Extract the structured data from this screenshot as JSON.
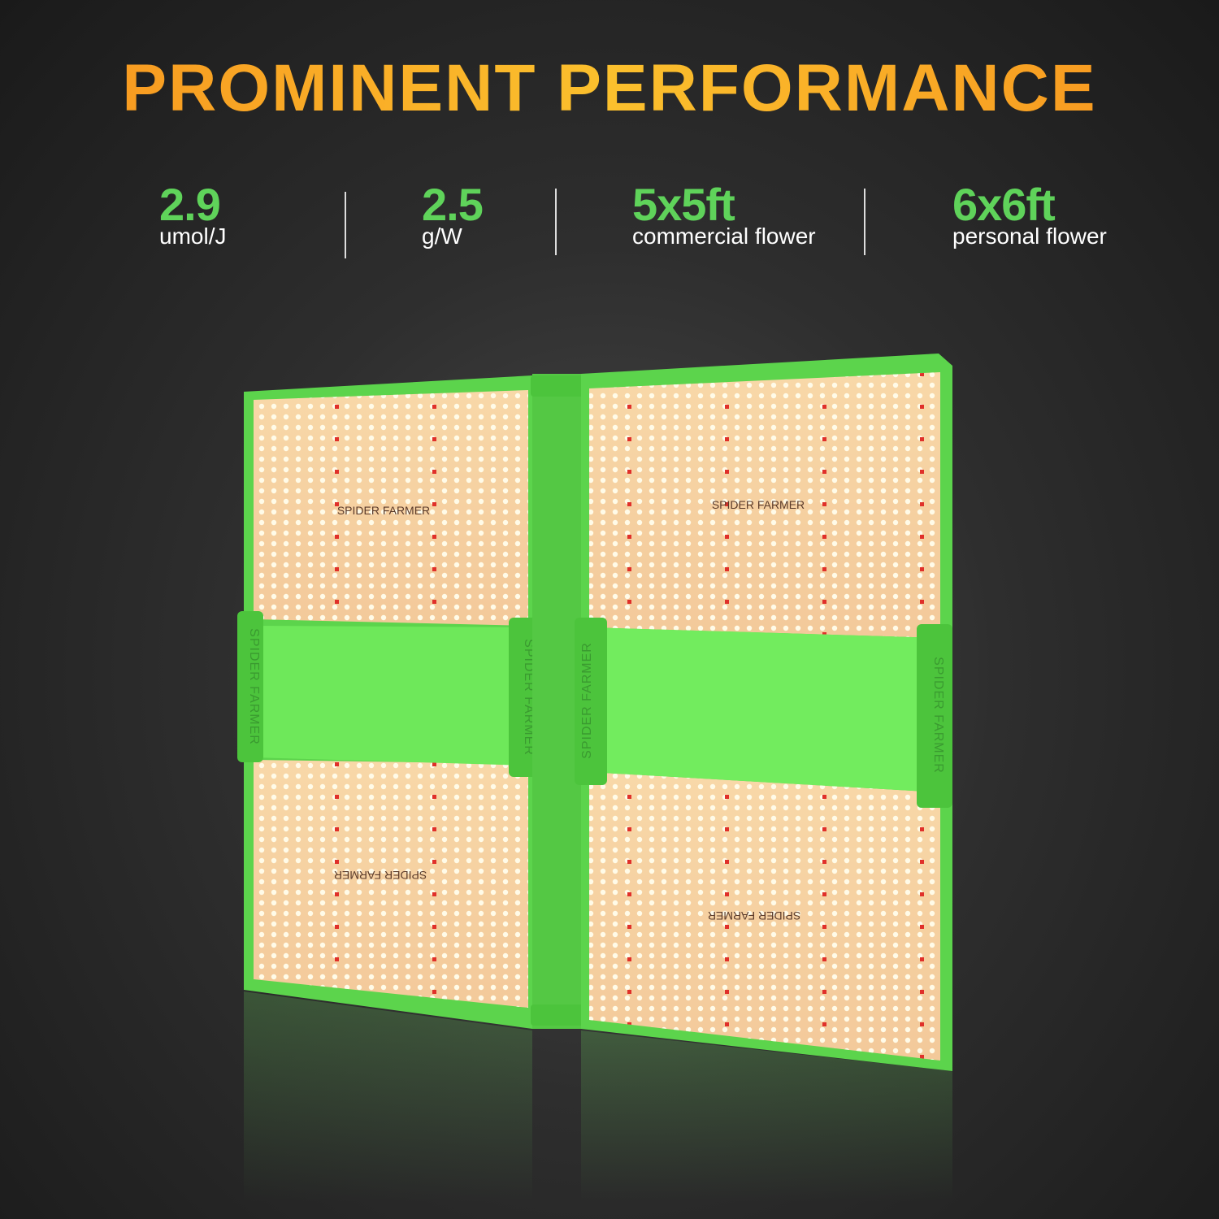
{
  "header": {
    "title": "PROMINENT PERFORMANCE"
  },
  "stats": [
    {
      "value": "2.9",
      "label": "umol/J"
    },
    {
      "value": "2.5",
      "label": "g/W"
    },
    {
      "value": "5x5ft",
      "label": "commercial flower"
    },
    {
      "value": "6x6ft",
      "label": "personal flower"
    }
  ],
  "panel": {
    "brand": "SPIDER FARMER"
  }
}
